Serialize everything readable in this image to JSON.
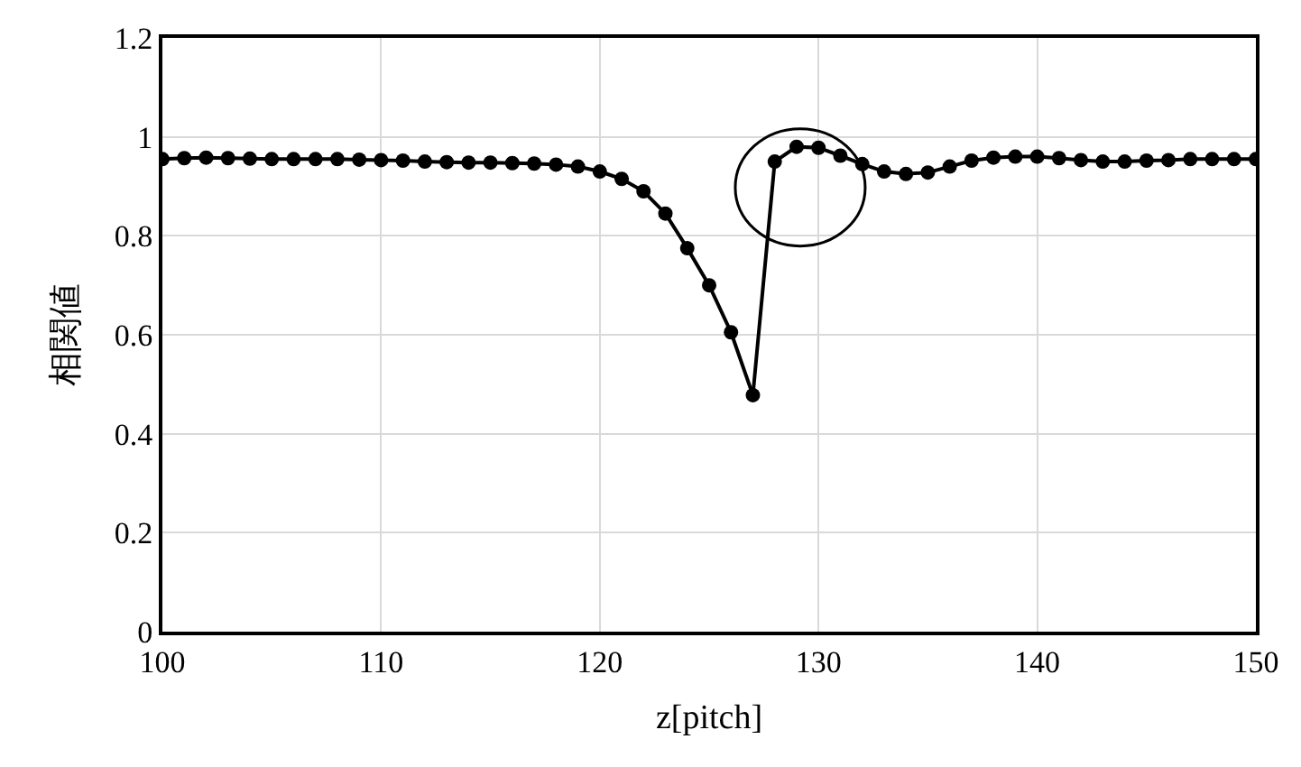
{
  "chart_data": {
    "type": "line",
    "xlabel": "z[pitch]",
    "ylabel": "相関値",
    "x": [
      100,
      101,
      102,
      103,
      104,
      105,
      106,
      107,
      108,
      109,
      110,
      111,
      112,
      113,
      114,
      115,
      116,
      117,
      118,
      119,
      120,
      121,
      122,
      123,
      124,
      125,
      126,
      127,
      128,
      129,
      130,
      131,
      132,
      133,
      134,
      135,
      136,
      137,
      138,
      139,
      140,
      141,
      142,
      143,
      144,
      145,
      146,
      147,
      148,
      149,
      150
    ],
    "series": [
      {
        "color": "#000000",
        "values": [
          0.955,
          0.957,
          0.958,
          0.957,
          0.956,
          0.955,
          0.955,
          0.955,
          0.955,
          0.954,
          0.953,
          0.952,
          0.95,
          0.949,
          0.948,
          0.948,
          0.947,
          0.946,
          0.944,
          0.94,
          0.93,
          0.915,
          0.89,
          0.845,
          0.775,
          0.7,
          0.605,
          0.478,
          0.95,
          0.98,
          0.978,
          0.962,
          0.945,
          0.93,
          0.925,
          0.928,
          0.94,
          0.952,
          0.958,
          0.96,
          0.96,
          0.957,
          0.953,
          0.95,
          0.95,
          0.952,
          0.953,
          0.955,
          0.955,
          0.955,
          0.955
        ]
      }
    ],
    "xlim": [
      100,
      150
    ],
    "xticks": [
      100,
      110,
      120,
      130,
      140,
      150
    ],
    "ylim": [
      0,
      1.2
    ],
    "yticks": [
      0,
      0.2,
      0.4,
      0.6,
      0.8,
      1,
      1.2
    ],
    "grid": true,
    "marker": "circle",
    "line_style": "solid"
  }
}
